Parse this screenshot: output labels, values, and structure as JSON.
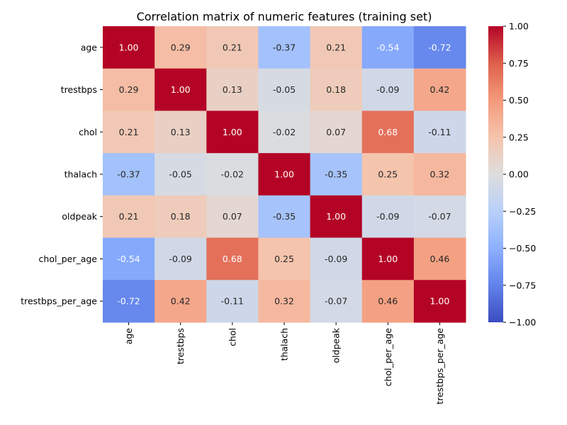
{
  "chart_data": {
    "type": "heatmap",
    "title": "Correlation matrix of numeric features (training set)",
    "xlabel": "",
    "ylabel": "",
    "rows": [
      "age",
      "trestbps",
      "chol",
      "thalach",
      "oldpeak",
      "chol_per_age",
      "trestbps_per_age"
    ],
    "columns": [
      "age",
      "trestbps",
      "chol",
      "thalach",
      "oldpeak",
      "chol_per_age",
      "trestbps_per_age"
    ],
    "values": [
      [
        1.0,
        0.29,
        0.21,
        -0.37,
        0.21,
        -0.54,
        -0.72
      ],
      [
        0.29,
        1.0,
        0.13,
        -0.05,
        0.18,
        -0.09,
        0.42
      ],
      [
        0.21,
        0.13,
        1.0,
        -0.02,
        0.07,
        0.68,
        -0.11
      ],
      [
        -0.37,
        -0.05,
        -0.02,
        1.0,
        -0.35,
        0.25,
        0.32
      ],
      [
        0.21,
        0.18,
        0.07,
        -0.35,
        1.0,
        -0.09,
        -0.07
      ],
      [
        -0.54,
        -0.09,
        0.68,
        0.25,
        -0.09,
        1.0,
        0.46
      ],
      [
        -0.72,
        0.42,
        -0.11,
        0.32,
        -0.07,
        0.46,
        1.0
      ]
    ],
    "value_labels": [
      [
        "1.00",
        "0.29",
        "0.21",
        "-0.37",
        "0.21",
        "-0.54",
        "-0.72"
      ],
      [
        "0.29",
        "1.00",
        "0.13",
        "-0.05",
        "0.18",
        "-0.09",
        "0.42"
      ],
      [
        "0.21",
        "0.13",
        "1.00",
        "-0.02",
        "0.07",
        "0.68",
        "-0.11"
      ],
      [
        "-0.37",
        "-0.05",
        "-0.02",
        "1.00",
        "-0.35",
        "0.25",
        "0.32"
      ],
      [
        "0.21",
        "0.18",
        "0.07",
        "-0.35",
        "1.00",
        "-0.09",
        "-0.07"
      ],
      [
        "-0.54",
        "-0.09",
        "0.68",
        "0.25",
        "-0.09",
        "1.00",
        "0.46"
      ],
      [
        "-0.72",
        "0.42",
        "-0.11",
        "0.32",
        "-0.07",
        "0.46",
        "1.00"
      ]
    ],
    "colorbar": {
      "range": [
        -1.0,
        1.0
      ],
      "ticks": [
        -1.0,
        -0.75,
        -0.5,
        -0.25,
        0.0,
        0.25,
        0.5,
        0.75,
        1.0
      ],
      "tick_labels": [
        "−1.00",
        "−0.75",
        "−0.50",
        "−0.25",
        "0.00",
        "0.25",
        "0.50",
        "0.75",
        "1.00"
      ]
    },
    "colormap": "coolwarm",
    "colors": {
      "low": "#3b4cc0",
      "mid": "#dddddd",
      "high": "#b40426"
    },
    "grid": false
  }
}
